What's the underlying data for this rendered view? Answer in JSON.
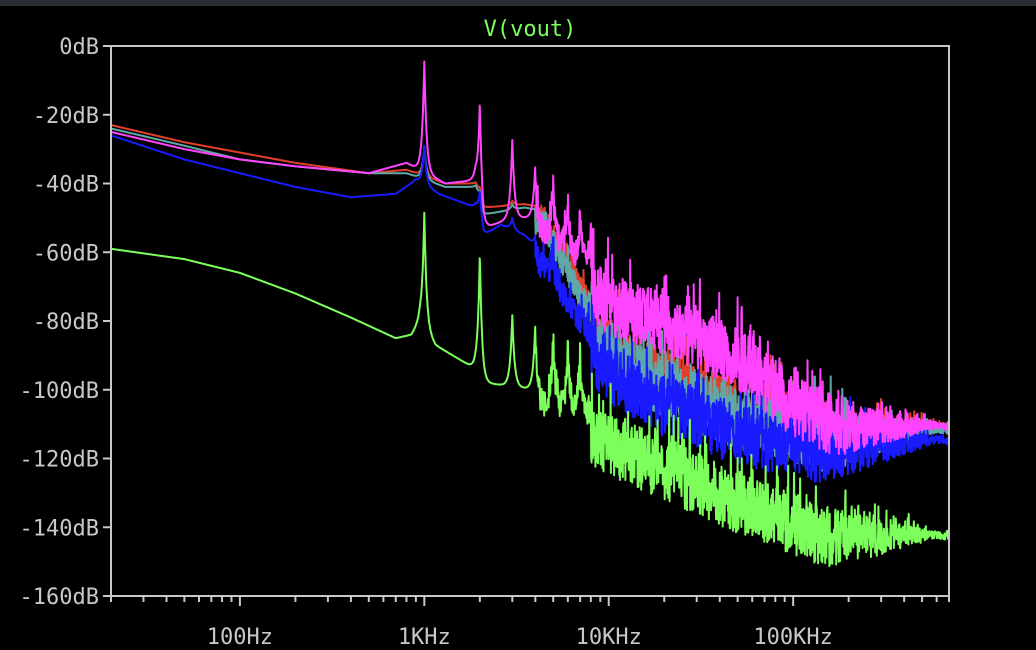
{
  "chart_data": {
    "type": "line",
    "title": "V(vout)",
    "xscale": "log",
    "xlim": [
      20,
      700000
    ],
    "ylim": [
      -160,
      0
    ],
    "y_ticks": [
      {
        "value": 0,
        "label": "0dB"
      },
      {
        "value": -20,
        "label": "-20dB"
      },
      {
        "value": -40,
        "label": "-40dB"
      },
      {
        "value": -60,
        "label": "-60dB"
      },
      {
        "value": -80,
        "label": "-80dB"
      },
      {
        "value": -100,
        "label": "-100dB"
      },
      {
        "value": -120,
        "label": "-120dB"
      },
      {
        "value": -140,
        "label": "-140dB"
      },
      {
        "value": -160,
        "label": "-160dB"
      }
    ],
    "x_ticks": [
      {
        "value": 100,
        "label": "100Hz"
      },
      {
        "value": 1000,
        "label": "1KHz"
      },
      {
        "value": 10000,
        "label": "10KHz"
      },
      {
        "value": 100000,
        "label": "100KHz"
      }
    ],
    "grid": false,
    "series": [
      {
        "color": "#e0402a",
        "peaks": [
          [
            1000,
            -30
          ],
          [
            2000,
            -41
          ],
          [
            3000,
            -45
          ],
          [
            4000,
            -48
          ],
          [
            5000,
            -52
          ]
        ],
        "points": [
          [
            20,
            -23
          ],
          [
            50,
            -28
          ],
          [
            100,
            -31
          ],
          [
            200,
            -34
          ],
          [
            500,
            -37
          ],
          [
            800,
            -36
          ],
          [
            1300,
            -40
          ],
          [
            1900,
            -40
          ],
          [
            2100,
            -47
          ],
          [
            3500,
            -46
          ],
          [
            4500,
            -47
          ],
          [
            6000,
            -60
          ],
          [
            8000,
            -72
          ],
          [
            10000,
            -80
          ],
          [
            20000,
            -88
          ],
          [
            50000,
            -98
          ],
          [
            100000,
            -102
          ],
          [
            200000,
            -106
          ],
          [
            700000,
            -110
          ]
        ]
      },
      {
        "color": "#5fa8a8",
        "peaks": [
          [
            1000,
            -29
          ],
          [
            2000,
            -42
          ],
          [
            3000,
            -46
          ],
          [
            4000,
            -50
          ],
          [
            5000,
            -54
          ]
        ],
        "points": [
          [
            20,
            -24
          ],
          [
            50,
            -29
          ],
          [
            100,
            -33
          ],
          [
            200,
            -35
          ],
          [
            500,
            -37
          ],
          [
            800,
            -37
          ],
          [
            1300,
            -41
          ],
          [
            1900,
            -41
          ],
          [
            2100,
            -49
          ],
          [
            3500,
            -47
          ],
          [
            4500,
            -48
          ],
          [
            6000,
            -62
          ],
          [
            8000,
            -74
          ],
          [
            10000,
            -82
          ],
          [
            20000,
            -90
          ],
          [
            50000,
            -100
          ],
          [
            100000,
            -104
          ],
          [
            200000,
            -107
          ],
          [
            700000,
            -111
          ]
        ]
      },
      {
        "color": "#1a1aff",
        "peaks": [
          [
            1000,
            -29
          ],
          [
            2000,
            -42
          ],
          [
            3000,
            -50
          ],
          [
            4000,
            -55
          ],
          [
            5000,
            -58
          ]
        ],
        "points": [
          [
            20,
            -26
          ],
          [
            50,
            -33
          ],
          [
            100,
            -37
          ],
          [
            200,
            -41
          ],
          [
            400,
            -44
          ],
          [
            700,
            -43
          ],
          [
            900,
            -39
          ],
          [
            1200,
            -43
          ],
          [
            1900,
            -47
          ],
          [
            2100,
            -55
          ],
          [
            2600,
            -52
          ],
          [
            3500,
            -55
          ],
          [
            5000,
            -64
          ],
          [
            8000,
            -80
          ],
          [
            10000,
            -86
          ],
          [
            20000,
            -96
          ],
          [
            50000,
            -104
          ],
          [
            100000,
            -108
          ],
          [
            200000,
            -110
          ],
          [
            700000,
            -114
          ]
        ]
      },
      {
        "color": "#ff44ff",
        "peaks": [
          [
            1000,
            -4
          ],
          [
            2000,
            -16
          ],
          [
            3000,
            -27
          ],
          [
            4000,
            -34
          ],
          [
            5000,
            -38
          ],
          [
            6000,
            -42
          ],
          [
            7000,
            -46
          ],
          [
            8000,
            -48
          ]
        ],
        "points": [
          [
            20,
            -25
          ],
          [
            50,
            -30
          ],
          [
            100,
            -33
          ],
          [
            200,
            -35
          ],
          [
            500,
            -37
          ],
          [
            800,
            -34
          ],
          [
            1300,
            -40
          ],
          [
            1900,
            -39
          ],
          [
            2100,
            -53
          ],
          [
            3000,
            -50
          ],
          [
            4500,
            -50
          ],
          [
            6000,
            -56
          ],
          [
            8000,
            -62
          ],
          [
            10000,
            -66
          ],
          [
            20000,
            -72
          ],
          [
            50000,
            -82
          ],
          [
            100000,
            -96
          ],
          [
            200000,
            -104
          ],
          [
            700000,
            -110
          ]
        ]
      },
      {
        "color": "#7cff5a",
        "peaks": [
          [
            1000,
            -48
          ],
          [
            2000,
            -60
          ],
          [
            3000,
            -78
          ],
          [
            4000,
            -80
          ],
          [
            5000,
            -82
          ],
          [
            6000,
            -84
          ],
          [
            7000,
            -88
          ]
        ],
        "points": [
          [
            20,
            -59
          ],
          [
            50,
            -62
          ],
          [
            100,
            -66
          ],
          [
            200,
            -72
          ],
          [
            400,
            -79
          ],
          [
            700,
            -85
          ],
          [
            850,
            -84
          ],
          [
            950,
            -80
          ],
          [
            1150,
            -87
          ],
          [
            1900,
            -94
          ],
          [
            2100,
            -98
          ],
          [
            3000,
            -99
          ],
          [
            5000,
            -101
          ],
          [
            8000,
            -104
          ],
          [
            10000,
            -107
          ],
          [
            20000,
            -114
          ],
          [
            50000,
            -124
          ],
          [
            100000,
            -130
          ],
          [
            200000,
            -136
          ],
          [
            700000,
            -142
          ]
        ]
      }
    ]
  }
}
